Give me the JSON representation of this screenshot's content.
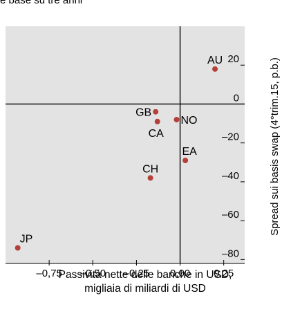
{
  "header": {
    "caption": "e base su tre anni"
  },
  "chart_data": {
    "type": "scatter",
    "xlabel_line1": "Passività nette delle banche in USD,",
    "xlabel_line2": "migliaia di miliardi di USD",
    "ylabel": "Spread sui basis swap (4°trim.15, p.b.)",
    "xlim": [
      -1.0,
      0.37
    ],
    "ylim": [
      -82,
      40
    ],
    "xticks": [
      "–0,75",
      "–0,50",
      "–0,25",
      "0,00",
      "0,25"
    ],
    "xtick_values": [
      -0.75,
      -0.5,
      -0.25,
      0.0,
      0.25
    ],
    "yticks": [
      "20",
      "0",
      "–20",
      "–40",
      "–60",
      "–80"
    ],
    "ytick_values": [
      20,
      0,
      -20,
      -40,
      -60,
      -80
    ],
    "grid": false,
    "points": [
      {
        "label": "AU",
        "x": 0.2,
        "y": 18
      },
      {
        "label": "GB",
        "x": -0.14,
        "y": -4
      },
      {
        "label": "CA",
        "x": -0.13,
        "y": -9
      },
      {
        "label": "NO",
        "x": -0.02,
        "y": -8
      },
      {
        "label": "EA",
        "x": 0.03,
        "y": -29
      },
      {
        "label": "CH",
        "x": -0.17,
        "y": -38
      },
      {
        "label": "JP",
        "x": -0.93,
        "y": -74
      }
    ],
    "colors": {
      "background": "#e3e3e3",
      "marker": "#b5403a",
      "axis": "#000000"
    }
  }
}
